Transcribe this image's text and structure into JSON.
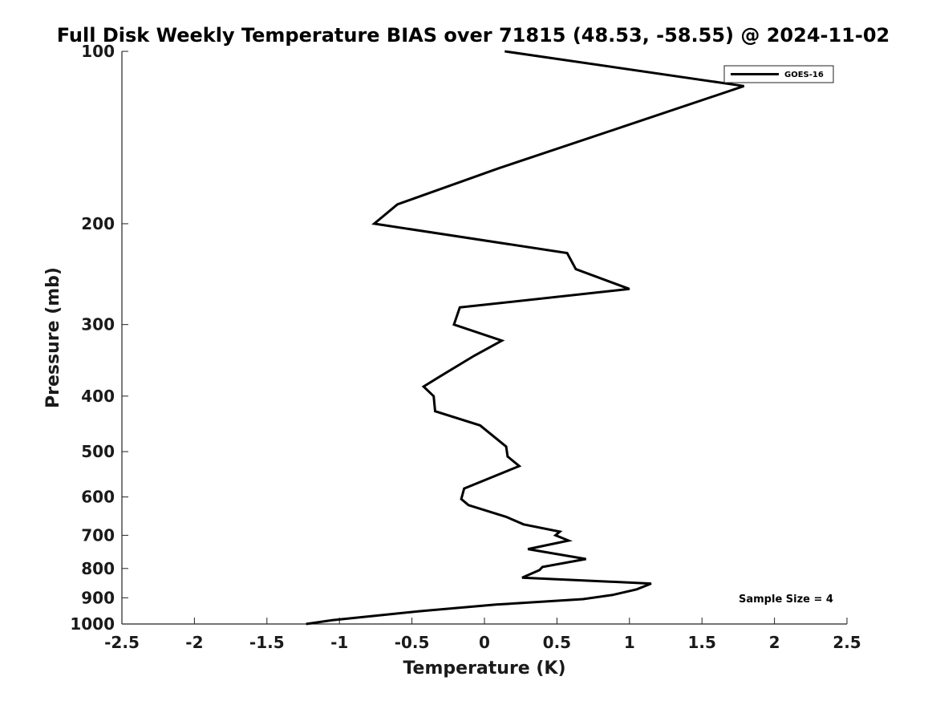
{
  "chart_data": {
    "type": "line",
    "title": "Full Disk Weekly Temperature BIAS over 71815 (48.53, -58.55) @ 2024-11-02",
    "xlabel": "Temperature (K)",
    "ylabel": "Pressure (mb)",
    "xlim": [
      -2.5,
      2.5
    ],
    "ylim": [
      1000,
      100
    ],
    "y_scale": "log",
    "x_ticks": [
      -2.5,
      -2,
      -1.5,
      -1,
      -0.5,
      0,
      0.5,
      1,
      1.5,
      2,
      2.5
    ],
    "x_tick_labels": [
      "-2.5",
      "-2",
      "-1.5",
      "-1",
      "-0.5",
      "0",
      "0.5",
      "1",
      "1.5",
      "2",
      "2.5"
    ],
    "y_ticks": [
      100,
      200,
      300,
      400,
      500,
      600,
      700,
      800,
      900,
      1000
    ],
    "y_tick_labels": [
      "100",
      "200",
      "300",
      "400",
      "500",
      "600",
      "700",
      "800",
      "900",
      "1000"
    ],
    "grid": false,
    "legend_position": "top-right",
    "series": [
      {
        "name": "GOES-16",
        "color": "#000000",
        "points": [
          {
            "x": 0.14,
            "y": 100
          },
          {
            "x": 1.79,
            "y": 115
          },
          {
            "x": 0.97,
            "y": 135
          },
          {
            "x": 0.1,
            "y": 160
          },
          {
            "x": -0.6,
            "y": 185
          },
          {
            "x": -0.76,
            "y": 200
          },
          {
            "x": 0.57,
            "y": 225
          },
          {
            "x": 0.63,
            "y": 240
          },
          {
            "x": 1.0,
            "y": 260
          },
          {
            "x": -0.17,
            "y": 280
          },
          {
            "x": -0.21,
            "y": 300
          },
          {
            "x": 0.12,
            "y": 320
          },
          {
            "x": -0.07,
            "y": 340
          },
          {
            "x": -0.31,
            "y": 370
          },
          {
            "x": -0.42,
            "y": 385
          },
          {
            "x": -0.35,
            "y": 400
          },
          {
            "x": -0.34,
            "y": 425
          },
          {
            "x": -0.03,
            "y": 450
          },
          {
            "x": 0.15,
            "y": 490
          },
          {
            "x": 0.16,
            "y": 510
          },
          {
            "x": 0.24,
            "y": 530
          },
          {
            "x": -0.14,
            "y": 580
          },
          {
            "x": -0.16,
            "y": 605
          },
          {
            "x": -0.11,
            "y": 620
          },
          {
            "x": 0.15,
            "y": 650
          },
          {
            "x": 0.27,
            "y": 670
          },
          {
            "x": 0.52,
            "y": 690
          },
          {
            "x": 0.49,
            "y": 700
          },
          {
            "x": 0.58,
            "y": 715
          },
          {
            "x": 0.3,
            "y": 740
          },
          {
            "x": 0.7,
            "y": 770
          },
          {
            "x": 0.4,
            "y": 795
          },
          {
            "x": 0.38,
            "y": 805
          },
          {
            "x": 0.26,
            "y": 830
          },
          {
            "x": 1.15,
            "y": 850
          },
          {
            "x": 1.05,
            "y": 870
          },
          {
            "x": 0.88,
            "y": 890
          },
          {
            "x": 0.68,
            "y": 905
          },
          {
            "x": 0.08,
            "y": 925
          },
          {
            "x": -0.45,
            "y": 950
          },
          {
            "x": -1.05,
            "y": 985
          },
          {
            "x": -1.23,
            "y": 1000
          }
        ]
      }
    ],
    "annotation": "Sample Size = 4"
  }
}
